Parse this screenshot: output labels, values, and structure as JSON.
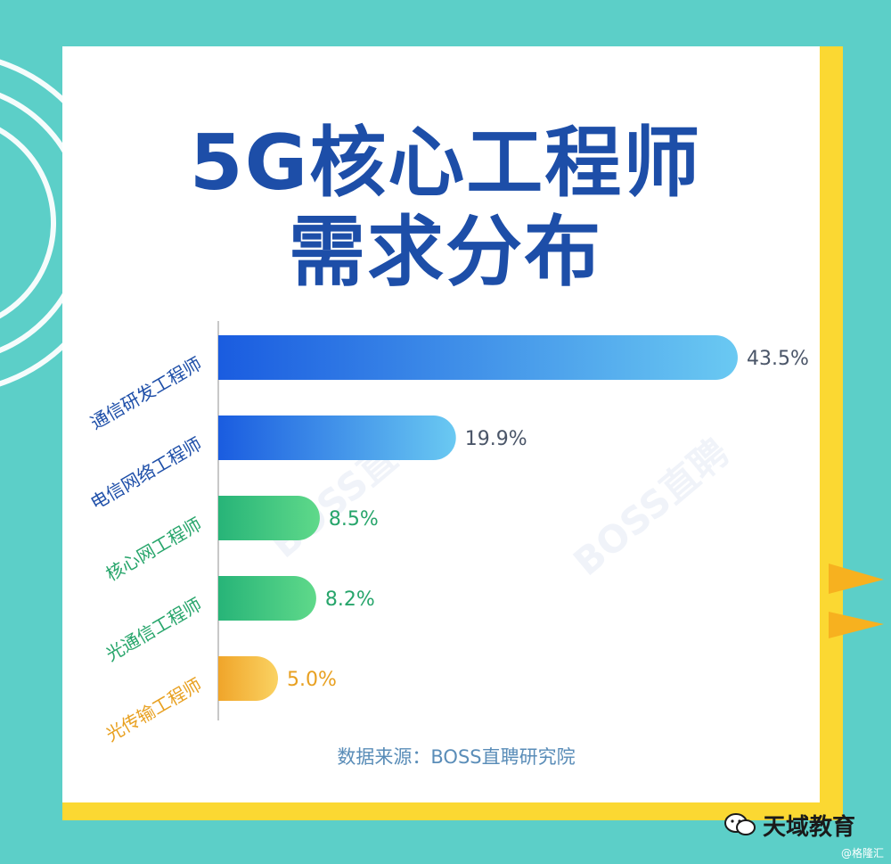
{
  "title_line1": "5G核心工程师",
  "title_line2": "需求分布",
  "source": "数据来源：BOSS直聘研究院",
  "watermark": "BOSS直聘",
  "brand": "天域教育",
  "handle": "@格隆汇",
  "colors": {
    "background": "#5ccfc8",
    "card": "#ffffff",
    "card_shadow": "#fbd832",
    "title": "#1d4ea8",
    "blue_start": "#1a5ce0",
    "blue_end": "#6ac9f2",
    "green_start": "#27b478",
    "green_end": "#5fd98a",
    "orange_start": "#f0a52a",
    "orange_end": "#fad262",
    "source_text": "#5a8db8"
  },
  "chart_data": {
    "type": "bar",
    "orientation": "horizontal",
    "categories": [
      "通信研发工程师",
      "电信网络工程师",
      "核心网工程师",
      "光通信工程师",
      "光传输工程师"
    ],
    "values": [
      43.5,
      19.9,
      8.5,
      8.2,
      5.0
    ],
    "value_labels": [
      "43.5%",
      "19.9%",
      "8.5%",
      "8.2%",
      "5.0%"
    ],
    "category_colors": [
      "blue",
      "blue",
      "green",
      "green",
      "orange"
    ],
    "unit": "%"
  }
}
